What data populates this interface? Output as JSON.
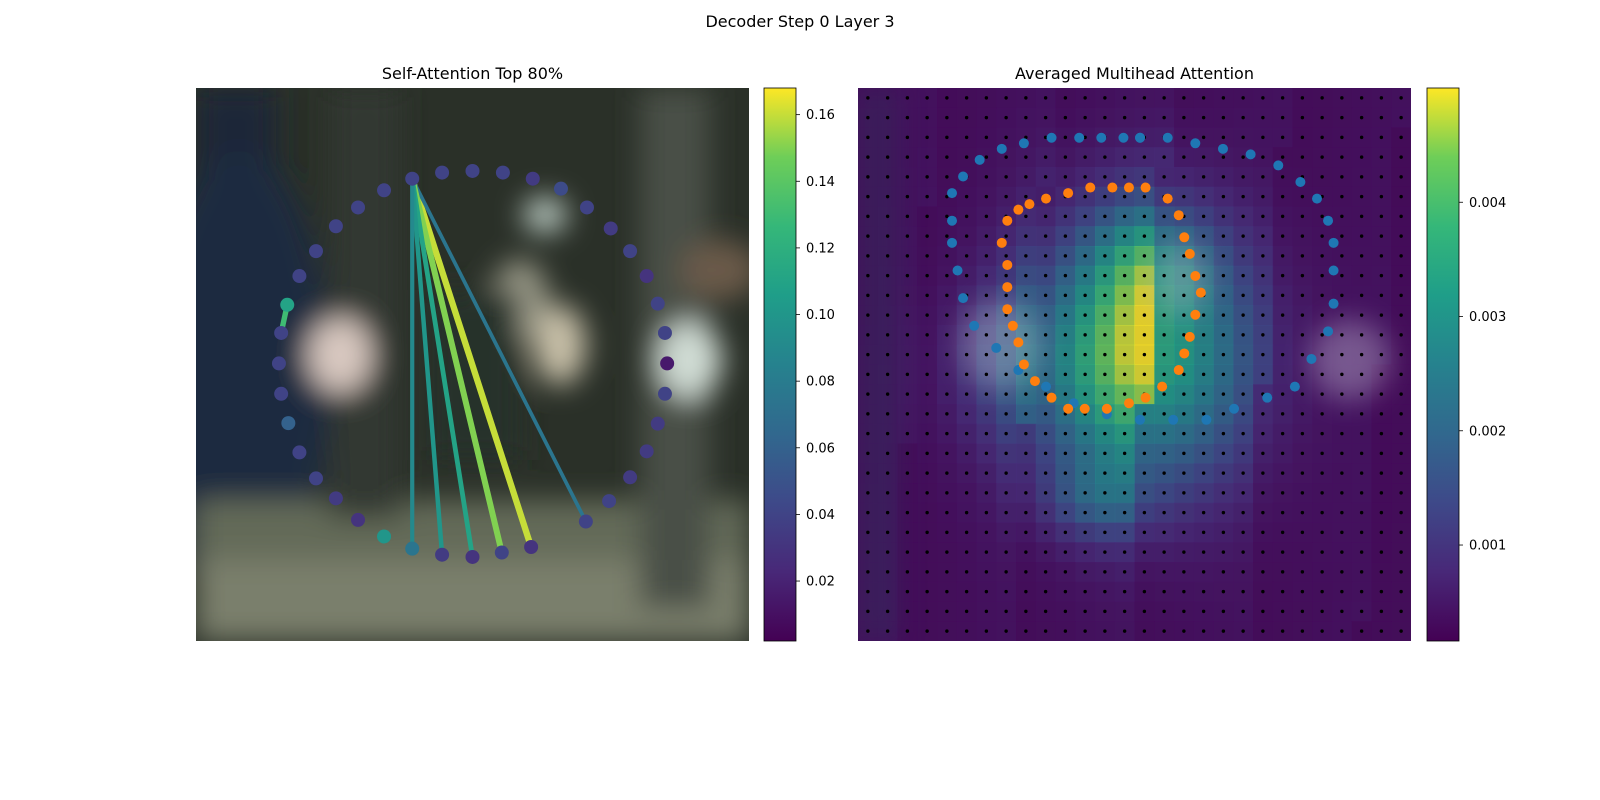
{
  "suptitle": "Decoder Step 0 Layer 3",
  "chart_data": [
    {
      "type": "scatter",
      "title": "Self-Attention Top 80%",
      "xlabel": "",
      "ylabel": "",
      "xlim": [
        0,
        1
      ],
      "ylim": [
        0,
        1
      ],
      "background": "blurred photo",
      "points": [
        {
          "x": 0.5,
          "y": 0.85,
          "v": 0.04
        },
        {
          "x": 0.555,
          "y": 0.847,
          "v": 0.04
        },
        {
          "x": 0.609,
          "y": 0.836,
          "v": 0.035
        },
        {
          "x": 0.66,
          "y": 0.818,
          "v": 0.045
        },
        {
          "x": 0.707,
          "y": 0.784,
          "v": 0.04
        },
        {
          "x": 0.75,
          "y": 0.746,
          "v": 0.035
        },
        {
          "x": 0.785,
          "y": 0.705,
          "v": 0.04
        },
        {
          "x": 0.815,
          "y": 0.66,
          "v": 0.03
        },
        {
          "x": 0.835,
          "y": 0.61,
          "v": 0.04
        },
        {
          "x": 0.848,
          "y": 0.557,
          "v": 0.04
        },
        {
          "x": 0.852,
          "y": 0.502,
          "v": 0.015
        },
        {
          "x": 0.848,
          "y": 0.447,
          "v": 0.04
        },
        {
          "x": 0.835,
          "y": 0.393,
          "v": 0.035
        },
        {
          "x": 0.815,
          "y": 0.343,
          "v": 0.035
        },
        {
          "x": 0.785,
          "y": 0.296,
          "v": 0.035
        },
        {
          "x": 0.747,
          "y": 0.253,
          "v": 0.04
        },
        {
          "x": 0.705,
          "y": 0.216,
          "v": 0.04
        },
        {
          "x": 0.606,
          "y": 0.17,
          "v": 0.03
        },
        {
          "x": 0.553,
          "y": 0.16,
          "v": 0.04
        },
        {
          "x": 0.5,
          "y": 0.152,
          "v": 0.03
        },
        {
          "x": 0.445,
          "y": 0.156,
          "v": 0.035
        },
        {
          "x": 0.391,
          "y": 0.167,
          "v": 0.075
        },
        {
          "x": 0.34,
          "y": 0.189,
          "v": 0.1
        },
        {
          "x": 0.293,
          "y": 0.219,
          "v": 0.03
        },
        {
          "x": 0.253,
          "y": 0.258,
          "v": 0.035
        },
        {
          "x": 0.217,
          "y": 0.294,
          "v": 0.04
        },
        {
          "x": 0.187,
          "y": 0.341,
          "v": 0.04
        },
        {
          "x": 0.167,
          "y": 0.394,
          "v": 0.06
        },
        {
          "x": 0.154,
          "y": 0.447,
          "v": 0.04
        },
        {
          "x": 0.15,
          "y": 0.502,
          "v": 0.04
        },
        {
          "x": 0.154,
          "y": 0.557,
          "v": 0.04
        },
        {
          "x": 0.165,
          "y": 0.608,
          "v": 0.11
        },
        {
          "x": 0.187,
          "y": 0.66,
          "v": 0.04
        },
        {
          "x": 0.217,
          "y": 0.705,
          "v": 0.04
        },
        {
          "x": 0.253,
          "y": 0.75,
          "v": 0.04
        },
        {
          "x": 0.293,
          "y": 0.784,
          "v": 0.04
        },
        {
          "x": 0.34,
          "y": 0.815,
          "v": 0.04
        },
        {
          "x": 0.391,
          "y": 0.836,
          "v": 0.04
        },
        {
          "x": 0.445,
          "y": 0.847,
          "v": 0.04
        }
      ],
      "links": [
        {
          "from": 37,
          "to": 17,
          "v": 0.16
        },
        {
          "from": 37,
          "to": 16,
          "v": 0.075
        },
        {
          "from": 37,
          "to": 18,
          "v": 0.15
        },
        {
          "from": 37,
          "to": 19,
          "v": 0.11
        },
        {
          "from": 37,
          "to": 20,
          "v": 0.1
        },
        {
          "from": 37,
          "to": 21,
          "v": 0.09
        },
        {
          "from": 31,
          "to": 30,
          "v": 0.13
        }
      ],
      "colorbar": {
        "cmap": "viridis",
        "min": 0.002,
        "max": 0.168,
        "ticks": [
          "0.02",
          "0.04",
          "0.06",
          "0.08",
          "0.10",
          "0.12",
          "0.14",
          "0.16"
        ]
      }
    },
    {
      "type": "heatmap",
      "title": "Averaged Multihead Attention",
      "xlabel": "",
      "ylabel": "",
      "grid_size": 28,
      "hotspots": [
        {
          "cx": 0.5,
          "cy": 0.48,
          "sx": 0.13,
          "sy": 0.16,
          "amp": 0.004
        },
        {
          "cx": 0.53,
          "cy": 0.31,
          "sx": 0.07,
          "sy": 0.07,
          "amp": 0.0012
        },
        {
          "cx": 0.43,
          "cy": 0.74,
          "sx": 0.07,
          "sy": 0.05,
          "amp": 0.001
        },
        {
          "cx": 0.28,
          "cy": 0.5,
          "sx": 0.09,
          "sy": 0.1,
          "amp": 0.0006
        }
      ],
      "base_level": 0.0003,
      "outer_ring": {
        "name": "",
        "color": "#1f77b4",
        "points": [
          [
            0.51,
            0.09
          ],
          [
            0.56,
            0.09
          ],
          [
            0.61,
            0.1
          ],
          [
            0.66,
            0.11
          ],
          [
            0.71,
            0.12
          ],
          [
            0.76,
            0.14
          ],
          [
            0.8,
            0.17
          ],
          [
            0.83,
            0.2
          ],
          [
            0.85,
            0.24
          ],
          [
            0.86,
            0.28
          ],
          [
            0.86,
            0.33
          ],
          [
            0.86,
            0.39
          ],
          [
            0.85,
            0.44
          ],
          [
            0.82,
            0.49
          ],
          [
            0.79,
            0.54
          ],
          [
            0.74,
            0.56
          ],
          [
            0.68,
            0.58
          ],
          [
            0.63,
            0.6
          ],
          [
            0.57,
            0.6
          ],
          [
            0.51,
            0.6
          ],
          [
            0.45,
            0.59
          ],
          [
            0.39,
            0.57
          ],
          [
            0.34,
            0.54
          ],
          [
            0.29,
            0.51
          ],
          [
            0.25,
            0.47
          ],
          [
            0.21,
            0.43
          ],
          [
            0.19,
            0.38
          ],
          [
            0.18,
            0.33
          ],
          [
            0.17,
            0.28
          ],
          [
            0.17,
            0.24
          ],
          [
            0.17,
            0.19
          ],
          [
            0.19,
            0.16
          ],
          [
            0.22,
            0.13
          ],
          [
            0.26,
            0.11
          ],
          [
            0.3,
            0.1
          ],
          [
            0.35,
            0.09
          ],
          [
            0.4,
            0.09
          ],
          [
            0.44,
            0.09
          ],
          [
            0.48,
            0.09
          ],
          [
            0.51,
            0.09
          ]
        ]
      },
      "inner_ring": {
        "name": "",
        "color": "#ff7f0e",
        "points": [
          [
            0.49,
            0.18
          ],
          [
            0.52,
            0.18
          ],
          [
            0.56,
            0.2
          ],
          [
            0.58,
            0.23
          ],
          [
            0.59,
            0.27
          ],
          [
            0.6,
            0.3
          ],
          [
            0.61,
            0.34
          ],
          [
            0.62,
            0.37
          ],
          [
            0.61,
            0.41
          ],
          [
            0.6,
            0.45
          ],
          [
            0.59,
            0.48
          ],
          [
            0.58,
            0.51
          ],
          [
            0.55,
            0.54
          ],
          [
            0.52,
            0.56
          ],
          [
            0.49,
            0.57
          ],
          [
            0.45,
            0.58
          ],
          [
            0.41,
            0.58
          ],
          [
            0.38,
            0.58
          ],
          [
            0.35,
            0.56
          ],
          [
            0.32,
            0.53
          ],
          [
            0.3,
            0.5
          ],
          [
            0.29,
            0.46
          ],
          [
            0.28,
            0.43
          ],
          [
            0.27,
            0.4
          ],
          [
            0.27,
            0.36
          ],
          [
            0.27,
            0.32
          ],
          [
            0.26,
            0.28
          ],
          [
            0.27,
            0.24
          ],
          [
            0.29,
            0.22
          ],
          [
            0.31,
            0.21
          ],
          [
            0.34,
            0.2
          ],
          [
            0.38,
            0.19
          ],
          [
            0.42,
            0.18
          ],
          [
            0.46,
            0.18
          ]
        ]
      },
      "colorbar": {
        "cmap": "viridis",
        "min": 0.00016,
        "max": 0.005,
        "ticks": [
          "0.001",
          "0.002",
          "0.003",
          "0.004"
        ],
        "tick_values": [
          0.001,
          0.002,
          0.003,
          0.004
        ]
      }
    }
  ]
}
